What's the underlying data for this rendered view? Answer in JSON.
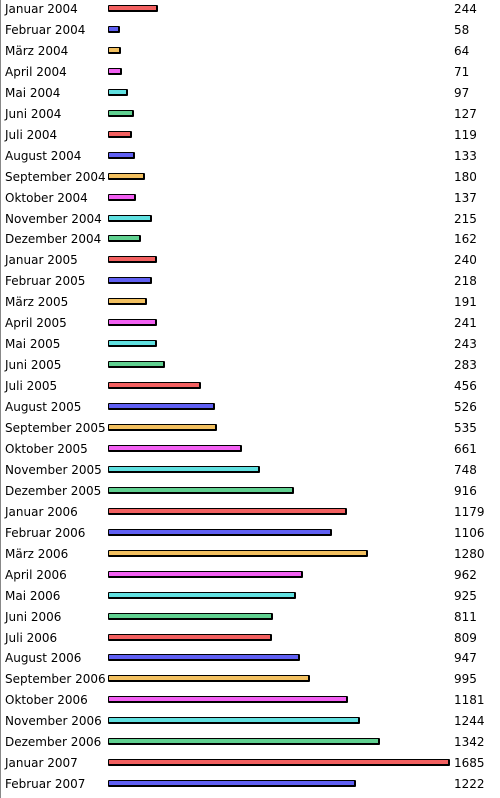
{
  "chart_data": {
    "type": "bar",
    "orientation": "horizontal",
    "title": "",
    "xlabel": "",
    "ylabel": "",
    "xlim": [
      0,
      1685
    ],
    "grid": false,
    "legend": "none",
    "colors": [
      "#f26060",
      "#6060f2",
      "#f2c060",
      "#f260f2",
      "#60e0e0",
      "#60d090"
    ],
    "categories": [
      "Januar 2004",
      "Februar 2004",
      "März 2004",
      "April 2004",
      "Mai 2004",
      "Juni 2004",
      "Juli 2004",
      "August 2004",
      "September 2004",
      "Oktober 2004",
      "November 2004",
      "Dezember 2004",
      "Januar 2005",
      "Februar 2005",
      "März 2005",
      "April 2005",
      "Mai 2005",
      "Juni 2005",
      "Juli 2005",
      "August 2005",
      "September 2005",
      "Oktober 2005",
      "November 2005",
      "Dezember 2005",
      "Januar 2006",
      "Februar 2006",
      "März 2006",
      "April 2006",
      "Mai 2006",
      "Juni 2006",
      "Juli 2006",
      "August 2006",
      "September 2006",
      "Oktober 2006",
      "November 2006",
      "Dezember 2006",
      "Januar 2007",
      "Februar 2007"
    ],
    "values": [
      244,
      58,
      64,
      71,
      97,
      127,
      119,
      133,
      180,
      137,
      215,
      162,
      240,
      218,
      191,
      241,
      243,
      283,
      456,
      526,
      535,
      661,
      748,
      916,
      1179,
      1106,
      1280,
      962,
      925,
      811,
      809,
      947,
      995,
      1181,
      1244,
      1342,
      1685,
      1222
    ]
  }
}
